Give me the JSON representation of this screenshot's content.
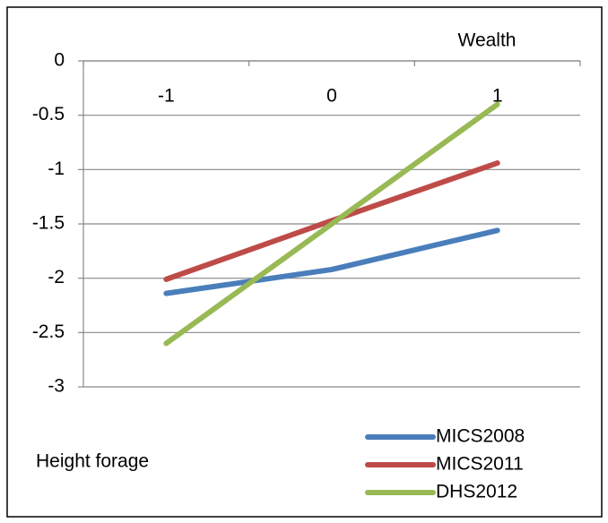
{
  "chart_data": {
    "type": "line",
    "xlabel": "Wealth",
    "ylabel": "Height forage",
    "categories": [
      "-1",
      "0",
      "1"
    ],
    "series": [
      {
        "name": "MICS2008",
        "color": "#4a7ebb",
        "values": [
          -2.14,
          -1.92,
          -1.56
        ]
      },
      {
        "name": "MICS2011",
        "color": "#be4b48",
        "values": [
          -2.01,
          -1.47,
          -0.94
        ]
      },
      {
        "name": "DHS2012",
        "color": "#98b954",
        "values": [
          -2.6,
          -1.5,
          -0.4
        ]
      }
    ],
    "ylim": [
      -3,
      0
    ],
    "yticks": [
      0,
      -0.5,
      -1,
      -1.5,
      -2,
      -2.5,
      -3
    ],
    "grid": true,
    "legend": "bottom-right"
  }
}
